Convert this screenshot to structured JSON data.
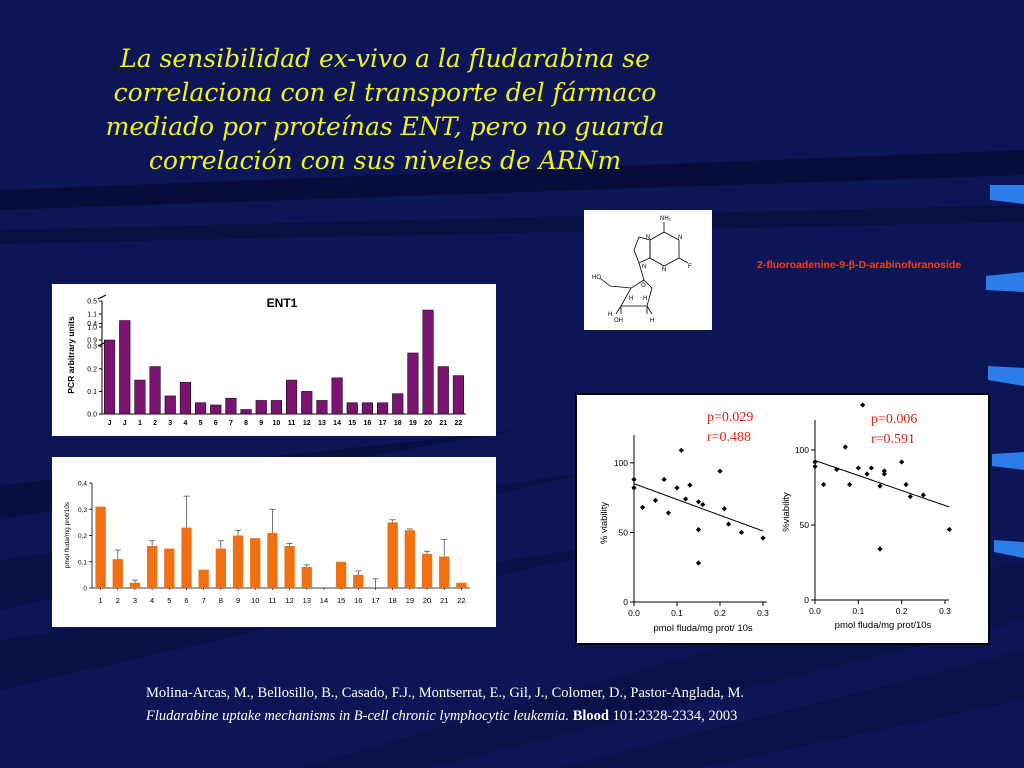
{
  "slide": {
    "title_lines": [
      "La sensibilidad ex-vivo a la fludarabina se",
      "correlaciona con el transporte del fármaco",
      "mediado por proteínas ENT, pero no guarda",
      "correlación con sus niveles de ARNm"
    ],
    "molecule_name": "2-fluoroadenine-9-β-D-arabinofuranoside",
    "molecule_atoms": [
      "NH₂",
      "N",
      "N",
      "N",
      "N",
      "F",
      "HO",
      "O",
      "H",
      "H",
      "OH",
      "H",
      "H"
    ],
    "reference": {
      "authors": "Molina-Arcas, M., Bellosillo, B., Casado, F.J., Montserrat, E., Gil, J., Colomer, D., Pastor-Anglada, M.",
      "article_title": "Fludarabine uptake mechanisms in B-cell chronic lymphocytic leukemia.",
      "journal": "Blood",
      "citation": "101:2328-2334, 2003"
    },
    "colors": {
      "background": "#0c1656",
      "title": "#f2f21a",
      "molecule_name": "#ff3a12",
      "ent1_bars": "#7b1470",
      "uptake_bars": "#f07014",
      "stats_text": "#e01e10"
    }
  },
  "chart_data": [
    {
      "type": "bar",
      "title": "ENT1",
      "xlabel": "",
      "ylabel": "PCR arbitrary units",
      "categories": [
        "J",
        "J",
        "1",
        "2",
        "3",
        "4",
        "5",
        "6",
        "7",
        "8",
        "9",
        "10",
        "11",
        "12",
        "13",
        "14",
        "15",
        "16",
        "17",
        "18",
        "19",
        "20",
        "21",
        "22"
      ],
      "values": [
        0.9,
        1.05,
        0.15,
        0.21,
        0.08,
        0.14,
        0.05,
        0.04,
        0.07,
        0.02,
        0.06,
        0.06,
        0.15,
        0.1,
        0.06,
        0.16,
        0.05,
        0.05,
        0.05,
        0.09,
        0.27,
        0.46,
        0.21,
        0.17
      ],
      "ylim": [
        0,
        1.1
      ],
      "axis_break": [
        0.5,
        0.8
      ],
      "yticks": [
        "0.0",
        "0.1",
        "0.2",
        "0.3",
        "0.4",
        "0.5",
        "0.9",
        "1.0",
        "1.1"
      ],
      "grid": false
    },
    {
      "type": "bar",
      "title": "",
      "xlabel": "",
      "ylabel": "pmol fluda/mg prot/10s",
      "categories": [
        "1",
        "2",
        "3",
        "4",
        "5",
        "6",
        "7",
        "8",
        "9",
        "10",
        "11",
        "12",
        "13",
        "14",
        "15",
        "16",
        "17",
        "18",
        "19",
        "20",
        "21",
        "22"
      ],
      "values": [
        0.31,
        0.11,
        0.02,
        0.16,
        0.15,
        0.23,
        0.07,
        0.15,
        0.2,
        0.19,
        0.21,
        0.16,
        0.08,
        0,
        0.1,
        0.05,
        0,
        0.25,
        0.22,
        0.13,
        0.12,
        0.02
      ],
      "errors": [
        0,
        0.035,
        0.01,
        0.02,
        0,
        0.12,
        0,
        0.03,
        0.02,
        0,
        0.09,
        0.01,
        0.008,
        0,
        0,
        0.015,
        0.035,
        0.01,
        0.005,
        0.01,
        0.065,
        0
      ],
      "ylim": [
        0,
        0.4
      ],
      "yticks": [
        "0",
        "0,1",
        "0,2",
        "0,3",
        "0,4"
      ],
      "grid": false
    },
    {
      "type": "scatter",
      "xlabel": "pmol fluda/mg prot/ 10s",
      "ylabel": "% viability",
      "xlim": [
        0,
        0.3
      ],
      "ylim": [
        0,
        120
      ],
      "xticks": [
        "0.0",
        "0.1",
        "0.2",
        "0.3"
      ],
      "yticks": [
        "0",
        "50",
        "100"
      ],
      "annotations": [
        "p=0.029",
        "r=0.488"
      ],
      "points": [
        [
          0.0,
          88
        ],
        [
          0.0,
          82
        ],
        [
          0.02,
          68
        ],
        [
          0.05,
          73
        ],
        [
          0.07,
          88
        ],
        [
          0.08,
          64
        ],
        [
          0.1,
          82
        ],
        [
          0.11,
          109
        ],
        [
          0.12,
          74
        ],
        [
          0.13,
          84
        ],
        [
          0.15,
          52
        ],
        [
          0.15,
          72
        ],
        [
          0.16,
          70
        ],
        [
          0.15,
          28
        ],
        [
          0.2,
          94
        ],
        [
          0.21,
          67
        ],
        [
          0.22,
          56
        ],
        [
          0.25,
          50
        ],
        [
          0.3,
          46
        ]
      ],
      "trendline": [
        [
          0.0,
          85
        ],
        [
          0.3,
          51
        ]
      ]
    },
    {
      "type": "scatter",
      "xlabel": "pmol fluda/mg prot/10s",
      "ylabel": "%viability",
      "xlim": [
        0,
        0.3
      ],
      "ylim": [
        0,
        120
      ],
      "xticks": [
        "0.0",
        "0.1",
        "0.2",
        "0.3"
      ],
      "yticks": [
        "0",
        "50",
        "100"
      ],
      "annotations": [
        "p=0.006",
        "r=0.591"
      ],
      "points": [
        [
          0.0,
          92
        ],
        [
          0.0,
          89
        ],
        [
          0.02,
          77
        ],
        [
          0.05,
          87
        ],
        [
          0.07,
          102
        ],
        [
          0.08,
          77
        ],
        [
          0.1,
          88
        ],
        [
          0.11,
          130
        ],
        [
          0.12,
          84
        ],
        [
          0.13,
          88
        ],
        [
          0.15,
          76
        ],
        [
          0.16,
          84
        ],
        [
          0.16,
          86
        ],
        [
          0.15,
          34
        ],
        [
          0.2,
          92
        ],
        [
          0.21,
          77
        ],
        [
          0.22,
          69
        ],
        [
          0.25,
          70
        ],
        [
          0.31,
          47
        ]
      ],
      "trendline": [
        [
          0.0,
          93
        ],
        [
          0.31,
          62
        ]
      ]
    }
  ]
}
